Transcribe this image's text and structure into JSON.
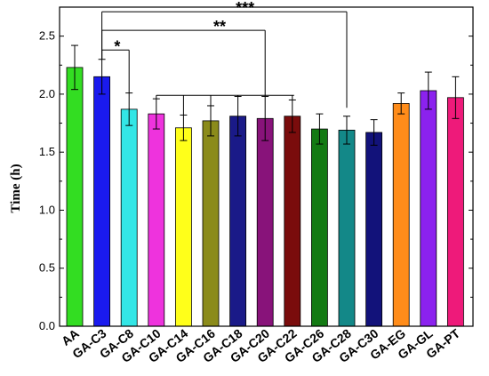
{
  "chart_data": {
    "type": "bar",
    "title": "",
    "xlabel": "",
    "ylabel": "Time (h)",
    "ylim": [
      0.0,
      2.75
    ],
    "yticks": [
      "0.0",
      "0.5",
      "1.0",
      "1.5",
      "2.0",
      "2.5"
    ],
    "categories": [
      "AA",
      "GA-C3",
      "GA-C8",
      "GA-C10",
      "GA-C14",
      "GA-C16",
      "GA-C18",
      "GA-C20",
      "GA-C22",
      "GA-C26",
      "GA-C28",
      "GA-C30",
      "GA-EG",
      "GA-GL",
      "GA-PT"
    ],
    "values": [
      2.23,
      2.15,
      1.87,
      1.83,
      1.71,
      1.77,
      1.81,
      1.79,
      1.81,
      1.7,
      1.69,
      1.67,
      1.92,
      2.03,
      1.97
    ],
    "errors": [
      0.19,
      0.15,
      0.14,
      0.13,
      0.11,
      0.13,
      0.17,
      0.19,
      0.14,
      0.13,
      0.12,
      0.11,
      0.09,
      0.16,
      0.18
    ],
    "colors": [
      "#33dd22",
      "#1a1aee",
      "#33e6e6",
      "#ee33dd",
      "#ffff1a",
      "#8b8b1a",
      "#1a1a88",
      "#88137a",
      "#7a0c0c",
      "#137a13",
      "#138888",
      "#12127a",
      "#ff8c1a",
      "#8b22ee",
      "#ee1a7a"
    ],
    "significance": [
      {
        "label": "*",
        "from": "GA-C3",
        "to": "GA-C8",
        "level": 2.38
      },
      {
        "label": "**",
        "from": "GA-C3",
        "to": "GA-C20",
        "level": 2.55
      },
      {
        "label": "***",
        "from": "GA-C3",
        "to": "GA-C28",
        "level": 2.71
      }
    ],
    "group_bracket": {
      "from": "GA-C10",
      "to": "GA-C22",
      "level": 1.99
    }
  }
}
